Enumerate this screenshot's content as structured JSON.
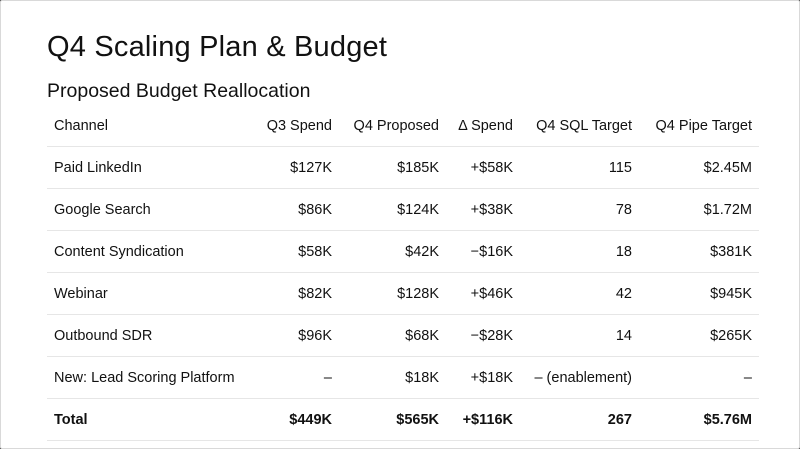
{
  "slide": {
    "title": "Q4 Scaling Plan & Budget",
    "subtitle": "Proposed Budget Reallocation"
  },
  "table": {
    "headers": [
      "Channel",
      "Q3 Spend",
      "Q4 Proposed",
      "Δ Spend",
      "Q4 SQL Target",
      "Q4 Pipe Target"
    ],
    "rows": [
      [
        "Paid LinkedIn",
        "$127K",
        "$185K",
        "+$58K",
        "115",
        "$2.45M"
      ],
      [
        "Google Search",
        "$86K",
        "$124K",
        "+$38K",
        "78",
        "$1.72M"
      ],
      [
        "Content Syndication",
        "$58K",
        "$42K",
        "−$16K",
        "18",
        "$381K"
      ],
      [
        "Webinar",
        "$82K",
        "$128K",
        "+$46K",
        "42",
        "$945K"
      ],
      [
        "Outbound SDR",
        "$96K",
        "$68K",
        "−$28K",
        "14",
        "$265K"
      ],
      [
        "New: Lead Scoring Platform",
        "–",
        "$18K",
        "+$18K",
        "– (enablement)",
        "–"
      ]
    ],
    "total": [
      "Total",
      "$449K",
      "$565K",
      "+$116K",
      "267",
      "$5.76M"
    ]
  }
}
